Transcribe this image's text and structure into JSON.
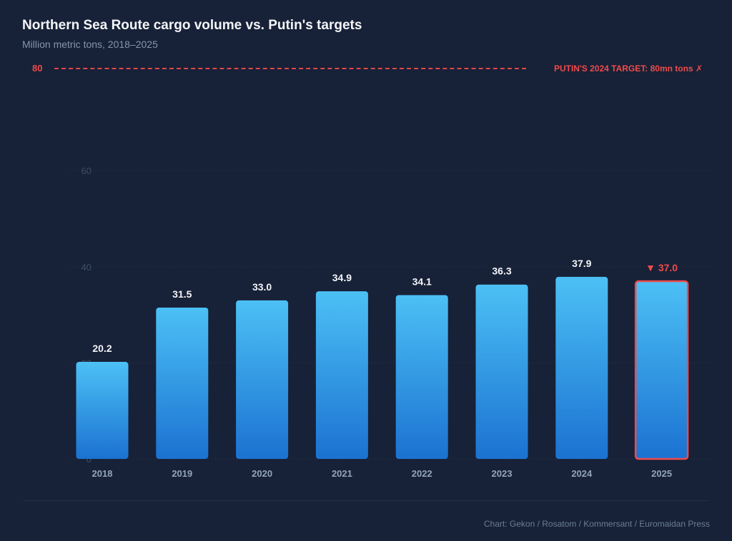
{
  "chart_data": {
    "type": "bar",
    "title": "Northern Sea Route cargo volume vs. Putin's targets",
    "subtitle": "Million metric tons, 2018–2025",
    "categories": [
      "2018",
      "2019",
      "2020",
      "2021",
      "2022",
      "2023",
      "2024",
      "2025"
    ],
    "values": [
      20.2,
      31.5,
      33.0,
      34.9,
      34.1,
      36.3,
      37.9,
      37.0
    ],
    "data_labels": [
      "20.2",
      "31.5",
      "33.0",
      "34.9",
      "34.1",
      "36.3",
      "37.9",
      "▼ 37.0"
    ],
    "yticks": [
      "0",
      "20",
      "40",
      "60"
    ],
    "ylim": [
      0,
      80
    ],
    "grid": true,
    "highlight": {
      "category": "2025",
      "color": "#ef4b4b"
    },
    "target": {
      "value": 80,
      "value_label": "80",
      "label": "PUTIN'S 2024 TARGET: 80mn tons ✗",
      "color": "#ef4b4b"
    },
    "bar_gradient": [
      "#4cc0f5",
      "#1b72d1"
    ],
    "source": "Chart: Gekon / Rosatom / Kommersant / Euromaidan Press"
  }
}
